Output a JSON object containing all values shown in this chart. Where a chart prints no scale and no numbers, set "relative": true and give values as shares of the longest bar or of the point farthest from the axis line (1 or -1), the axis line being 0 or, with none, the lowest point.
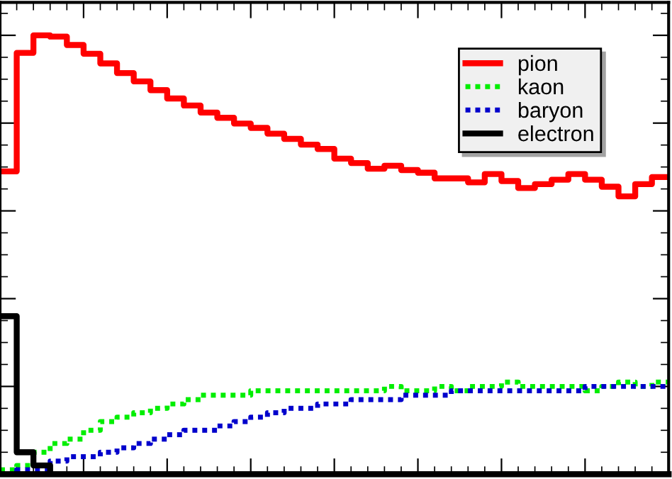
{
  "chart_data": {
    "type": "step",
    "relative": true,
    "legend": "top right",
    "categories": [
      null,
      null,
      null,
      null,
      null,
      null,
      null,
      null,
      null,
      null,
      null,
      null,
      null,
      null,
      null,
      null,
      null,
      null,
      null,
      null,
      null,
      null,
      null,
      null,
      null,
      null,
      null,
      null,
      null,
      null,
      null,
      null,
      null,
      null,
      null,
      null,
      null,
      null,
      null,
      null,
      null
    ],
    "series": [
      {
        "name": "pion",
        "color": "#ff0000",
        "line_style": "solid",
        "values": [
          0.69,
          0.96,
          1.0,
          0.997,
          0.978,
          0.958,
          0.936,
          0.914,
          0.895,
          0.875,
          0.856,
          0.84,
          0.824,
          0.812,
          0.799,
          0.789,
          0.776,
          0.764,
          0.751,
          0.741,
          0.719,
          0.709,
          0.696,
          0.703,
          0.693,
          0.687,
          0.674,
          0.674,
          0.665,
          0.684,
          0.668,
          0.652,
          0.661,
          0.671,
          0.684,
          0.671,
          0.655,
          0.633,
          0.661,
          0.677,
          0.677
        ]
      },
      {
        "name": "kaon",
        "color": "#00ee00",
        "line_style": "dotted",
        "values": [
          0.01,
          0.02,
          0.05,
          0.07,
          0.08,
          0.1,
          0.12,
          0.13,
          0.14,
          0.15,
          0.16,
          0.17,
          0.18,
          0.18,
          0.18,
          0.19,
          0.19,
          0.19,
          0.19,
          0.19,
          0.19,
          0.19,
          0.19,
          0.2,
          0.19,
          0.19,
          0.2,
          0.19,
          0.2,
          0.2,
          0.21,
          0.2,
          0.2,
          0.2,
          0.2,
          0.19,
          0.2,
          0.21,
          0.2,
          0.21,
          0.21
        ]
      },
      {
        "name": "baryon",
        "color": "#0000cc",
        "line_style": "dotted",
        "values": [
          0.0,
          0.01,
          0.01,
          0.03,
          0.04,
          0.04,
          0.05,
          0.06,
          0.07,
          0.08,
          0.09,
          0.1,
          0.1,
          0.11,
          0.12,
          0.13,
          0.14,
          0.15,
          0.15,
          0.16,
          0.16,
          0.17,
          0.17,
          0.17,
          0.18,
          0.18,
          0.18,
          0.19,
          0.19,
          0.19,
          0.19,
          0.19,
          0.19,
          0.19,
          0.19,
          0.2,
          0.2,
          0.2,
          0.2,
          0.2,
          0.2
        ]
      },
      {
        "name": "electron",
        "color": "#000000",
        "line_style": "solid",
        "values": [
          0.36,
          0.05,
          0.02,
          0.0,
          0,
          0,
          0,
          0,
          0,
          0,
          0,
          0,
          0,
          0,
          0,
          0,
          0,
          0,
          0,
          0,
          0,
          0,
          0,
          0,
          0,
          0,
          0,
          0,
          0,
          0,
          0,
          0,
          0,
          0,
          0,
          0,
          0,
          0,
          0,
          0,
          0
        ]
      }
    ]
  }
}
